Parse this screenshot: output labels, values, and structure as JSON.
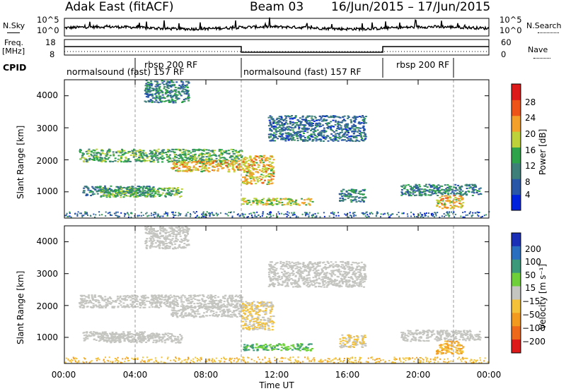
{
  "header": {
    "station": "Adak East (fitACF)",
    "beam": "Beam 03",
    "date_range": "16/Jun/2015 – 17/Jun/2015"
  },
  "panels": {
    "nsky": {
      "label": "N.Sky",
      "ticks": [
        "10^5",
        "10^0"
      ]
    },
    "nsearch": {
      "label": "N.Search",
      "ticks": [
        "10^5",
        "10^0"
      ]
    },
    "freq": {
      "label_line1": "Freq.",
      "label_line2": "[MHz]",
      "ticks": [
        "18",
        "8"
      ]
    },
    "nave": {
      "label": "Nave",
      "ticks": [
        "60",
        "0"
      ]
    },
    "cpid": {
      "label": "CPID"
    }
  },
  "cpid_segments": [
    {
      "text": "normalsound (fast) 157 RF",
      "start_hour": 0,
      "end_hour": 4
    },
    {
      "text": "rbsp 200 RF",
      "start_hour": 4,
      "end_hour": 10
    },
    {
      "text": "normalsound (fast) 157 RF",
      "start_hour": 10,
      "end_hour": 18
    },
    {
      "text": "rbsp 200 RF",
      "start_hour": 18,
      "end_hour": 22
    }
  ],
  "chart_data": {
    "type": "heatmap",
    "xlabel": "Time UT",
    "x_ticks": [
      "00:00",
      "04:00",
      "08:00",
      "12:00",
      "16:00",
      "20:00",
      "00:00"
    ],
    "xlim_hours": [
      0,
      24
    ],
    "ylabel": "Slant Range [km]",
    "y_ticks": [
      1000,
      2000,
      3000,
      4000
    ],
    "ylim_km": [
      180,
      4500
    ],
    "power": {
      "colorbar_label": "Power [dB]",
      "colorbar_ticks": [
        "4",
        "8",
        "12",
        "16",
        "20",
        "24",
        "28"
      ],
      "colors": [
        "#0022dd",
        "#2a56a8",
        "#3e7f7a",
        "#2fa34a",
        "#bdd23a",
        "#f2a02a",
        "#ec5418",
        "#dd1a1a"
      ]
    },
    "velocity": {
      "colorbar_label": "Velocity [m s⁻¹]",
      "colorbar_ticks": [
        "200",
        "100",
        "50",
        "15",
        "−15",
        "−50",
        "−100",
        "−200"
      ],
      "colors": [
        "#1a2fb5",
        "#2a6fbf",
        "#3c9a7a",
        "#6ecf3a",
        "#c4c4c0",
        "#f3c23a",
        "#f29a20",
        "#ee6a1a",
        "#dd1a1a"
      ]
    },
    "echo_regions": [
      {
        "t0": 0.8,
        "t1": 10.0,
        "r0": 1950,
        "r1": 2350,
        "power": 14,
        "velocity": 0
      },
      {
        "t0": 6.0,
        "t1": 10.0,
        "r0": 1650,
        "r1": 2000,
        "power": 20,
        "velocity": 0
      },
      {
        "t0": 1.0,
        "t1": 5.0,
        "r0": 900,
        "r1": 1200,
        "power": 10,
        "velocity": 0
      },
      {
        "t0": 2.0,
        "t1": 6.6,
        "r0": 850,
        "r1": 1150,
        "power": 14,
        "velocity": 0
      },
      {
        "t0": 4.5,
        "t1": 7.0,
        "r0": 3800,
        "r1": 4500,
        "power": 10,
        "velocity": 0
      },
      {
        "t0": 10.0,
        "t1": 11.8,
        "r0": 1250,
        "r1": 2150,
        "power": 20,
        "velocity": -15
      },
      {
        "t0": 10.0,
        "t1": 14.0,
        "r0": 600,
        "r1": 820,
        "power": 18,
        "velocity": 50
      },
      {
        "t0": 11.5,
        "t1": 17.0,
        "r0": 2600,
        "r1": 3400,
        "power": 8,
        "velocity": 0
      },
      {
        "t0": 15.5,
        "t1": 17.0,
        "r0": 700,
        "r1": 1100,
        "power": 10,
        "velocity": -15
      },
      {
        "t0": 19.0,
        "t1": 23.5,
        "r0": 900,
        "r1": 1250,
        "power": 10,
        "velocity": 0
      },
      {
        "t0": 21.0,
        "t1": 22.5,
        "r0": 500,
        "r1": 900,
        "power": 20,
        "velocity": -50
      }
    ]
  }
}
